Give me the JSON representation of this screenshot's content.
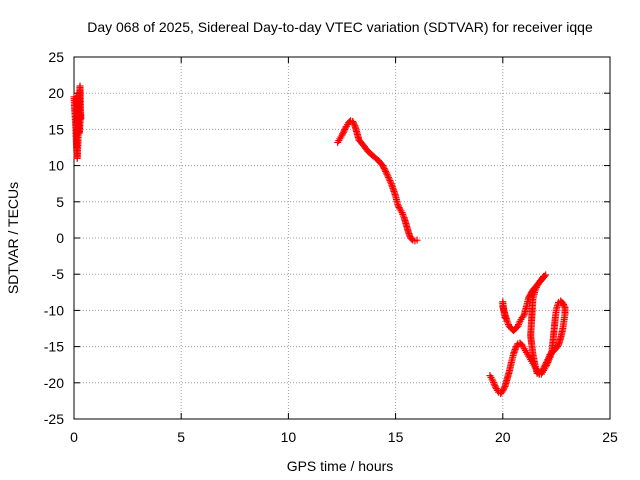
{
  "chart_data": {
    "type": "scatter",
    "title": "Day 068 of 2025, Sidereal Day-to-day VTEC variation (SDTVAR) for receiver iqqe",
    "xlabel": "GPS time / hours",
    "ylabel": "SDTVAR / TECUs",
    "xlim": [
      0,
      25
    ],
    "ylim": [
      -25,
      25
    ],
    "xticks": [
      0,
      5,
      10,
      15,
      20,
      25
    ],
    "yticks": [
      -25,
      -20,
      -15,
      -10,
      -5,
      0,
      5,
      10,
      15,
      20,
      25
    ],
    "grid": true,
    "marker": "+",
    "series": [
      {
        "color": "#ff0000",
        "segments": [
          [
            [
              0.0,
              19.5
            ],
            [
              0.02,
              18.5
            ],
            [
              0.05,
              17.0
            ],
            [
              0.08,
              15.5
            ],
            [
              0.1,
              14.0
            ],
            [
              0.12,
              12.5
            ],
            [
              0.15,
              11.0
            ],
            [
              0.18,
              13.0
            ],
            [
              0.2,
              15.0
            ],
            [
              0.22,
              17.0
            ],
            [
              0.25,
              19.0
            ],
            [
              0.28,
              21.0
            ],
            [
              0.3,
              18.0
            ],
            [
              0.32,
              16.5
            ],
            [
              0.05,
              19.0
            ],
            [
              0.1,
              19.5
            ],
            [
              0.15,
              18.0
            ],
            [
              0.2,
              16.0
            ],
            [
              0.25,
              14.5
            ],
            [
              0.3,
              17.0
            ]
          ],
          [
            [
              12.3,
              13.2
            ],
            [
              12.4,
              13.7
            ],
            [
              12.5,
              14.2
            ],
            [
              12.6,
              14.8
            ],
            [
              12.7,
              15.4
            ],
            [
              12.8,
              15.9
            ],
            [
              12.9,
              16.2
            ],
            [
              13.0,
              16.1
            ],
            [
              13.1,
              15.5
            ],
            [
              13.2,
              14.5
            ],
            [
              13.3,
              13.5
            ],
            [
              13.5,
              12.8
            ],
            [
              13.7,
              12.0
            ],
            [
              14.0,
              11.2
            ],
            [
              14.2,
              10.7
            ],
            [
              14.4,
              10.0
            ],
            [
              14.6,
              8.8
            ],
            [
              14.8,
              7.5
            ],
            [
              15.0,
              5.8
            ],
            [
              15.1,
              4.6
            ],
            [
              15.2,
              4.0
            ],
            [
              15.3,
              3.5
            ],
            [
              15.4,
              2.8
            ],
            [
              15.5,
              1.8
            ],
            [
              15.6,
              0.8
            ],
            [
              15.7,
              0.0
            ],
            [
              15.8,
              -0.3
            ],
            [
              15.9,
              -0.4
            ],
            [
              16.0,
              -0.3
            ]
          ],
          [
            [
              19.4,
              -19.0
            ],
            [
              19.5,
              -19.5
            ],
            [
              19.6,
              -20.2
            ],
            [
              19.7,
              -20.8
            ],
            [
              19.8,
              -21.3
            ],
            [
              19.9,
              -21.5
            ],
            [
              20.0,
              -21.1
            ],
            [
              20.1,
              -20.5
            ],
            [
              20.2,
              -19.5
            ],
            [
              20.3,
              -18.5
            ],
            [
              20.4,
              -17.2
            ],
            [
              20.5,
              -16.0
            ],
            [
              20.6,
              -15.2
            ],
            [
              20.7,
              -14.6
            ],
            [
              20.8,
              -14.5
            ],
            [
              20.9,
              -14.8
            ],
            [
              21.0,
              -15.3
            ],
            [
              21.1,
              -15.8
            ],
            [
              21.2,
              -16.3
            ],
            [
              21.3,
              -16.8
            ],
            [
              21.4,
              -17.3
            ],
            [
              21.5,
              -17.8
            ],
            [
              21.6,
              -18.3
            ],
            [
              21.7,
              -18.8
            ],
            [
              21.8,
              -18.6
            ],
            [
              21.9,
              -18.0
            ],
            [
              22.0,
              -17.4
            ],
            [
              22.1,
              -16.8
            ],
            [
              22.2,
              -16.1
            ],
            [
              22.3,
              -15.8
            ],
            [
              22.4,
              -15.5
            ],
            [
              22.5,
              -15.2
            ],
            [
              22.6,
              -14.8
            ],
            [
              22.7,
              -13.8
            ],
            [
              22.8,
              -12.5
            ],
            [
              22.85,
              -11.5
            ],
            [
              22.9,
              -10.5
            ],
            [
              22.9,
              -9.6
            ],
            [
              22.8,
              -9.0
            ],
            [
              22.7,
              -8.7
            ],
            [
              22.6,
              -8.9
            ],
            [
              22.5,
              -9.8
            ],
            [
              22.45,
              -11.0
            ],
            [
              22.4,
              -12.5
            ],
            [
              22.35,
              -14.0
            ],
            [
              22.3,
              -15.5
            ],
            [
              22.2,
              -16.5
            ],
            [
              22.1,
              -17.2
            ],
            [
              22.0,
              -17.8
            ],
            [
              21.9,
              -18.3
            ],
            [
              21.8,
              -18.8
            ],
            [
              21.6,
              -18.7
            ],
            [
              21.5,
              -17.5
            ],
            [
              21.4,
              -16.0
            ],
            [
              21.3,
              -13.5
            ],
            [
              21.35,
              -11.0
            ],
            [
              21.4,
              -8.5
            ],
            [
              21.5,
              -7.3
            ],
            [
              21.6,
              -6.6
            ],
            [
              21.7,
              -6.1
            ],
            [
              21.8,
              -5.7
            ],
            [
              21.9,
              -5.3
            ],
            [
              22.0,
              -5.1
            ],
            [
              21.8,
              -5.8
            ],
            [
              21.6,
              -6.5
            ],
            [
              21.4,
              -7.2
            ],
            [
              21.2,
              -8.3
            ],
            [
              21.1,
              -9.5
            ],
            [
              21.0,
              -10.6
            ],
            [
              20.9,
              -11.0
            ],
            [
              20.8,
              -11.5
            ],
            [
              20.7,
              -12.2
            ],
            [
              20.6,
              -12.5
            ],
            [
              20.5,
              -12.8
            ],
            [
              20.4,
              -12.5
            ],
            [
              20.3,
              -12.2
            ],
            [
              20.2,
              -11.5
            ],
            [
              20.1,
              -10.5
            ],
            [
              20.0,
              -9.5
            ],
            [
              20.0,
              -8.8
            ],
            [
              20.05,
              -10.0
            ],
            [
              20.1,
              -11.0
            ]
          ]
        ]
      }
    ]
  }
}
